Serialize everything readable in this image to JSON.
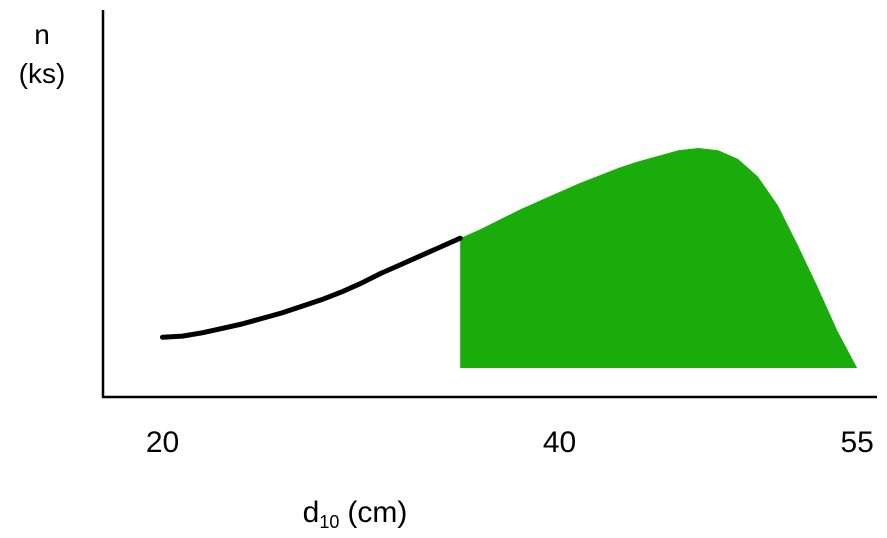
{
  "chart_data": {
    "type": "area",
    "ylabel_lines": [
      "n",
      "(ks)"
    ],
    "xlabel": {
      "main": "d",
      "subscript": "10",
      "unit": "(cm)"
    },
    "x_ticks": [
      {
        "value": 20,
        "label": "20"
      },
      {
        "value": 40,
        "label": "40"
      },
      {
        "value": 55,
        "label": "55"
      }
    ],
    "xlim": [
      17,
      56
    ],
    "ylim": [
      0,
      1
    ],
    "grid": false,
    "legend": "none",
    "curve": {
      "x": [
        20,
        21,
        22,
        23,
        24,
        25,
        26,
        27,
        28,
        29,
        30,
        31,
        32,
        33,
        34,
        35,
        36,
        37,
        38,
        39,
        40,
        41,
        42,
        43,
        44,
        45,
        46,
        47,
        48,
        49,
        50,
        51,
        52,
        53,
        54,
        55
      ],
      "y": [
        0.14,
        0.145,
        0.16,
        0.18,
        0.2,
        0.225,
        0.25,
        0.28,
        0.31,
        0.345,
        0.385,
        0.43,
        0.47,
        0.51,
        0.55,
        0.59,
        0.63,
        0.675,
        0.72,
        0.76,
        0.8,
        0.84,
        0.875,
        0.91,
        0.94,
        0.965,
        0.99,
        1.0,
        0.99,
        0.95,
        0.87,
        0.74,
        0.56,
        0.37,
        0.17,
        0.14
      ]
    },
    "shaded_from_x": 35,
    "shaded_to_x": 55,
    "colors": {
      "curve": "#000000",
      "fill": "#1aac0a",
      "axis": "#000000"
    }
  }
}
